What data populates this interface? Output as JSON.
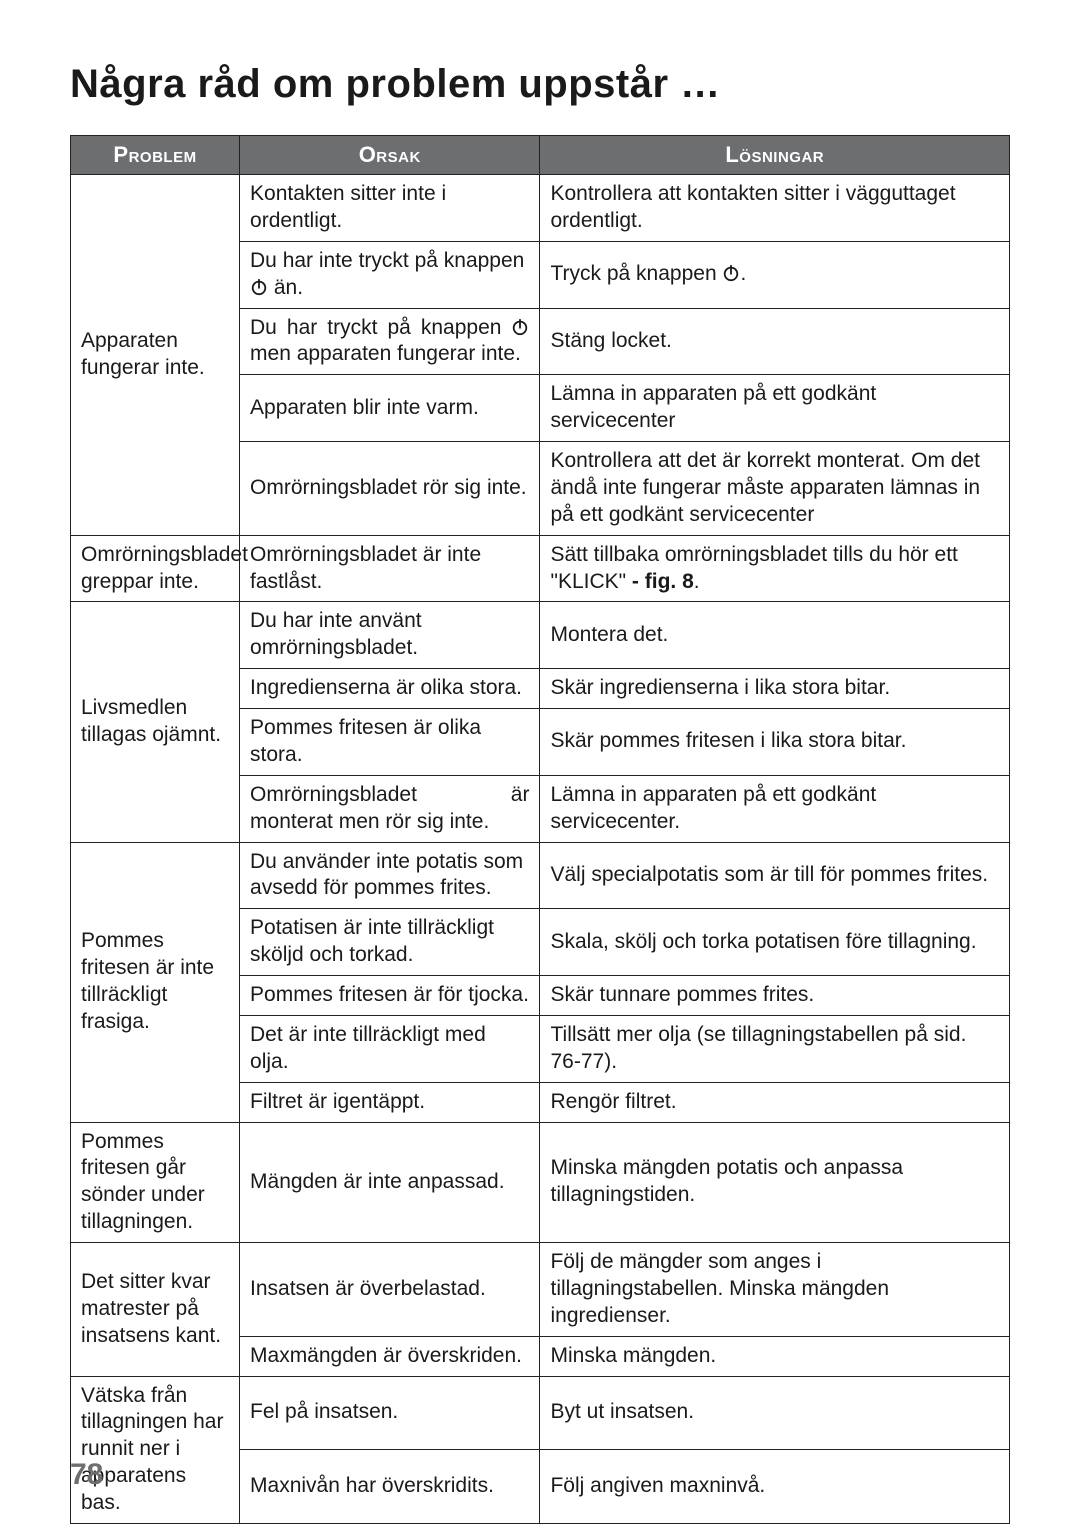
{
  "title": "Några råd om problem uppstår …",
  "page_number": "78",
  "colors": {
    "header_bg": "#6d6e70",
    "header_text": "#ffffff",
    "body_text": "#1a1a1a",
    "page_bg": "#ffffff",
    "page_number": "#6d6e70"
  },
  "column_widths_pct": [
    18,
    32,
    50
  ],
  "columns": {
    "problem": "Problem",
    "cause": "Orsak",
    "solution": "Lösningar"
  },
  "icons": {
    "power": "power-icon"
  },
  "rows": [
    {
      "problem": "Apparaten fungerar inte.",
      "cause": "Kontakten sitter inte i ordentligt.",
      "solution": "Kontrollera att kontakten sitter i vägguttaget ordentligt.",
      "solution_justify": true,
      "problem_span": 5
    },
    {
      "cause_pre": "Du har inte tryckt på knappen ",
      "cause_icon": "power",
      "cause_post": " än.",
      "solution_pre": "Tryck på knappen ",
      "solution_icon": "power",
      "solution_post": "."
    },
    {
      "cause_pre": "Du har tryckt på knappen ",
      "cause_icon": "power",
      "cause_post": " men apparaten fungerar inte.",
      "cause_justify": true,
      "solution": "Stäng locket."
    },
    {
      "cause": "Apparaten blir inte varm.",
      "solution": "Lämna in apparaten på ett godkänt servicecenter"
    },
    {
      "cause": "Omrörningsbladet rör sig inte.",
      "solution": "Kontrollera att det är korrekt monterat. Om det ändå inte fungerar måste apparaten lämnas in på ett godkänt servicecenter",
      "solution_justify": true
    },
    {
      "problem": "Omrörningsbladet greppar inte.",
      "cause": "Omrörningsbladet är inte fastlåst.",
      "solution_pre": "Sätt tillbaka omrörningsbladet tills du hör ett \"KLICK\" ",
      "solution_bold": "- fig. 8",
      "solution_post": ".",
      "solution_justify": true,
      "problem_span": 1
    },
    {
      "problem": "Livsmedlen tillagas ojämnt.",
      "cause": "Du har inte använt omrörningsbladet.",
      "solution": "Montera det.",
      "problem_span": 4
    },
    {
      "cause": "Ingredienserna är olika stora.",
      "solution": "Skär ingredienserna i lika stora bitar."
    },
    {
      "cause": "Pommes fritesen är olika stora.",
      "solution": "Skär pommes fritesen i lika stora bitar."
    },
    {
      "cause": "Omrörningsbladet är monterat men rör sig inte.",
      "cause_justify": true,
      "solution": "Lämna in apparaten på ett godkänt servicecenter."
    },
    {
      "problem": "Pommes fritesen är inte tillräckligt frasiga.",
      "cause": "Du använder inte potatis som avsedd för pommes frites.",
      "solution": "Välj specialpotatis som är till för pommes frites.",
      "problem_span": 5
    },
    {
      "cause": "Potatisen är inte tillräckligt sköljd och torkad.",
      "solution": "Skala, skölj och torka potatisen före tillagning."
    },
    {
      "cause": "Pommes fritesen är för tjocka.",
      "solution": "Skär tunnare pommes frites."
    },
    {
      "cause": "Det är inte tillräckligt med olja.",
      "solution": "Tillsätt mer olja (se tillagningstabellen på sid. 76-77).",
      "solution_justify": true
    },
    {
      "cause": "Filtret är igentäppt.",
      "solution": "Rengör filtret."
    },
    {
      "problem": "Pommes fritesen går sönder under tillagningen.",
      "cause": "Mängden är inte anpassad.",
      "solution": "Minska mängden potatis och anpassa tillagningstiden.",
      "problem_span": 1
    },
    {
      "problem": "Det sitter kvar matrester på insatsens kant.",
      "cause": "Insatsen är överbelastad.",
      "solution": "Följ de mängder som anges i tillagningstabellen. Minska mängden ingredienser.",
      "problem_span": 2
    },
    {
      "cause": "Maxmängden är överskriden.",
      "solution": "Minska mängden."
    },
    {
      "problem": "Vätska från tillagningen har runnit ner i apparatens bas.",
      "cause": "Fel på insatsen.",
      "solution": "Byt ut insatsen.",
      "problem_span": 2
    },
    {
      "cause": "Maxnivån har överskridits.",
      "solution": "Följ angiven maxninvå."
    }
  ]
}
